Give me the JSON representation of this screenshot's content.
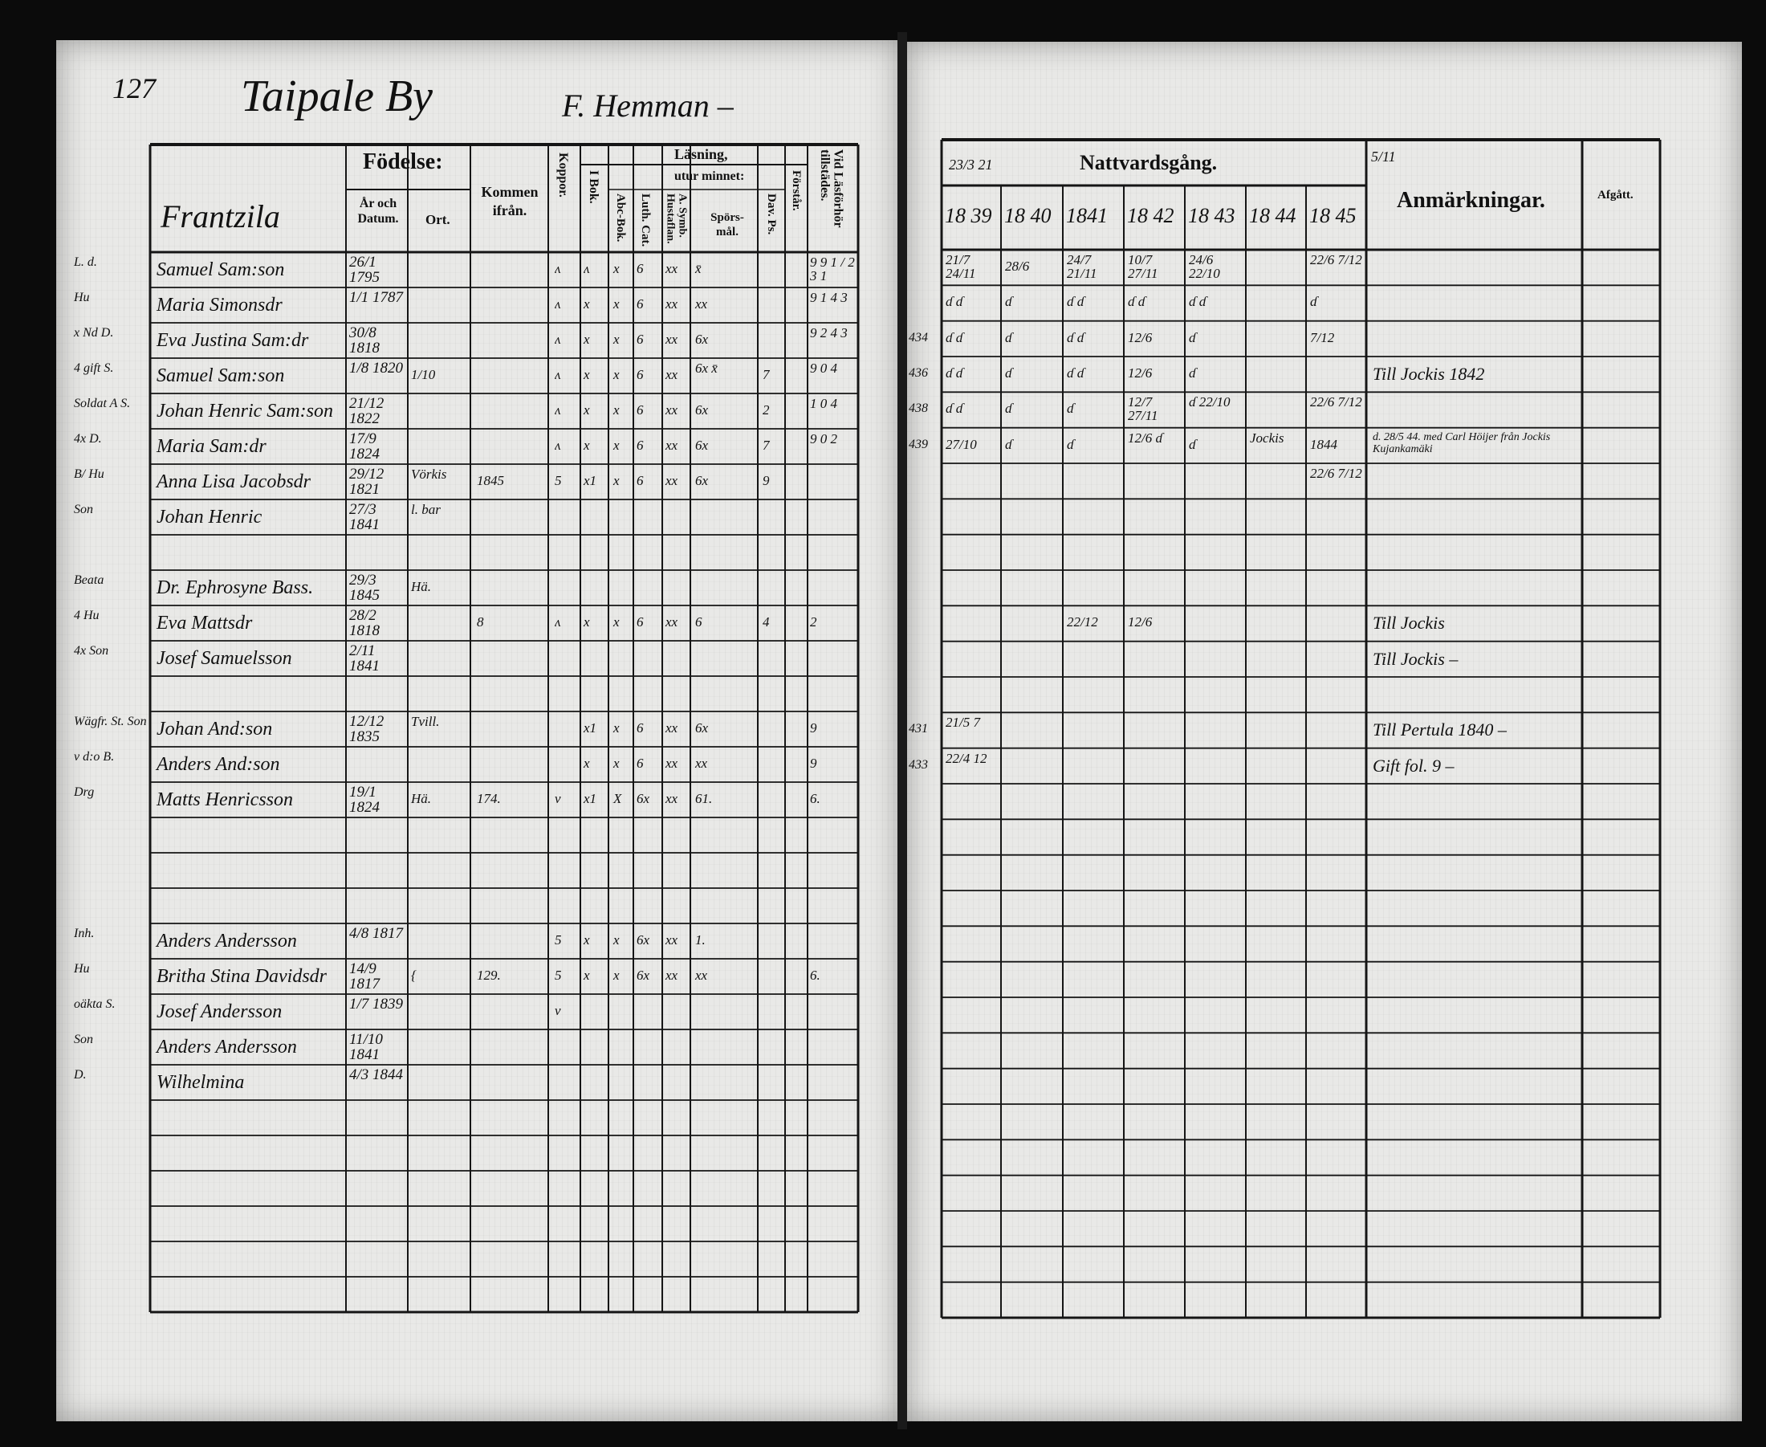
{
  "header": {
    "page_number": "127",
    "village": "Taipale By",
    "farm": "F. Hemman –"
  },
  "left_table": {
    "headers": {
      "name": "Frantzila",
      "birth": "Födelse:",
      "year_date": "År och Datum.",
      "place": "Ort.",
      "came_from": "Kommen ifrån.",
      "smallpox": "Koppor.",
      "reading": "Läsning,",
      "by_heart": "utur minnet:",
      "in_book": "I Bok.",
      "abc_book": "Abc-Bok.",
      "luth_cat": "Luth. Cat.",
      "symb": "A. Symb. Hustaflan.",
      "questions": "Spörs-mål.",
      "dav_ps": "Dav. Ps.",
      "understanding": "Förstår.",
      "exam_present": "Vid Läsförhör tillstädes."
    },
    "rows": [
      {
        "margin": "L. d.",
        "name": "Samuel Sam:son",
        "date": "26/1 1795",
        "ort": "",
        "came": "",
        "koppor": "ʌ",
        "ibok": "ʌ",
        "abc": "x",
        "luth": "6",
        "symb": "xx",
        "spors": "x̄",
        "dav": "",
        "forstar": "",
        "vid": "9 9 1 / 2 3 1"
      },
      {
        "margin": "Hu",
        "name": "Maria Simonsdr",
        "date": "1/1 1787",
        "ort": "",
        "came": "",
        "koppor": "ʌ",
        "ibok": "x",
        "abc": "x",
        "luth": "6",
        "symb": "xx",
        "spors": "xx",
        "dav": "",
        "forstar": "",
        "vid": "9 1 4 3"
      },
      {
        "margin": "x Nd D.",
        "name": "Eva Justina Sam:dr",
        "date": "30/8 1818",
        "ort": "",
        "came": "",
        "koppor": "ʌ",
        "ibok": "x",
        "abc": "x",
        "luth": "6",
        "symb": "xx",
        "spors": "6x",
        "dav": "",
        "forstar": "",
        "vid": "9 2 4 3"
      },
      {
        "margin": "4 gift S.",
        "name": "Samuel Sam:son",
        "date": "1/8 1820",
        "ort": "1/10",
        "came": "",
        "koppor": "ʌ",
        "ibok": "x",
        "abc": "x",
        "luth": "6",
        "symb": "xx",
        "spors": "6x x̄",
        "dav": "7",
        "forstar": "",
        "vid": "9 0 4"
      },
      {
        "margin": "Soldat A S.",
        "name": "Johan Henric Sam:son",
        "date": "21/12 1822",
        "ort": "",
        "came": "",
        "koppor": "ʌ",
        "ibok": "x",
        "abc": "x",
        "luth": "6",
        "symb": "xx",
        "spors": "6x",
        "dav": "2",
        "forstar": "",
        "vid": "1 0 4"
      },
      {
        "margin": "4x D.",
        "name": "Maria Sam:dr",
        "date": "17/9 1824",
        "ort": "",
        "came": "",
        "koppor": "ʌ",
        "ibok": "x",
        "abc": "x",
        "luth": "6",
        "symb": "xx",
        "spors": "6x",
        "dav": "7",
        "forstar": "",
        "vid": "9 0 2"
      },
      {
        "margin": "B/ Hu",
        "name": "Anna Lisa Jacobsdr",
        "date": "29/12 1821",
        "ort": "Vörkis",
        "came": "1845",
        "koppor": "5",
        "ibok": "x1",
        "abc": "x",
        "luth": "6",
        "symb": "xx",
        "spors": "6x",
        "dav": "9",
        "forstar": "",
        "vid": ""
      },
      {
        "margin": "Son",
        "name": "Johan Henric",
        "date": "27/3 1841",
        "ort": "l. bar",
        "came": "",
        "koppor": "",
        "ibok": "",
        "abc": "",
        "luth": "",
        "symb": "",
        "spors": "",
        "dav": "",
        "forstar": "",
        "vid": ""
      },
      {},
      {
        "margin": "Beata",
        "name": "Dr. Ephrosyne Bass.",
        "date": "29/3 1845",
        "ort": "Hä.",
        "came": "",
        "koppor": "",
        "ibok": "",
        "abc": "",
        "luth": "",
        "symb": "",
        "spors": "",
        "dav": "",
        "forstar": "",
        "vid": ""
      },
      {
        "margin": "4 Hu",
        "name": "Eva Mattsdr",
        "date": "28/2 1818",
        "ort": "",
        "came": "8",
        "koppor": "ʌ",
        "ibok": "x",
        "abc": "x",
        "luth": "6",
        "symb": "xx",
        "spors": "6",
        "dav": "4",
        "forstar": "",
        "vid": "2"
      },
      {
        "margin": "4x Son",
        "name": "Josef Samuelsson",
        "date": "2/11 1841",
        "ort": "",
        "came": "",
        "koppor": "",
        "ibok": "",
        "abc": "",
        "luth": "",
        "symb": "",
        "spors": "",
        "dav": "",
        "forstar": "",
        "vid": ""
      },
      {},
      {
        "margin": "Wägfr. St. Son",
        "name": "Johan And:son",
        "date": "12/12 1835",
        "ort": "Tvill.",
        "came": "",
        "koppor": "",
        "ibok": "x1",
        "abc": "x",
        "luth": "6",
        "symb": "xx",
        "spors": "6x",
        "dav": "",
        "forstar": "",
        "vid": "9"
      },
      {
        "margin": "v d:o B.",
        "name": "Anders And:son",
        "date": "",
        "ort": "",
        "came": "",
        "koppor": "",
        "ibok": "x",
        "abc": "x",
        "luth": "6",
        "symb": "xx",
        "spors": "xx",
        "dav": "",
        "forstar": "",
        "vid": "9"
      },
      {
        "margin": "Drg",
        "name": "Matts Henricsson",
        "date": "19/1 1824",
        "ort": "Hä.",
        "came": "174.",
        "koppor": "v",
        "ibok": "x1",
        "abc": "X",
        "luth": "6x",
        "symb": "xx",
        "spors": "61.",
        "dav": "",
        "forstar": "",
        "vid": "6."
      },
      {},
      {},
      {},
      {
        "margin": "Inh.",
        "name": "Anders Andersson",
        "date": "4/8 1817",
        "ort": "",
        "came": "",
        "koppor": "5",
        "ibok": "x",
        "abc": "x",
        "luth": "6x",
        "symb": "xx",
        "spors": "1.",
        "dav": "",
        "forstar": "",
        "vid": ""
      },
      {
        "margin": "Hu",
        "name": "Britha Stina Davidsdr",
        "date": "14/9 1817",
        "ort": "{",
        "came": "129.",
        "koppor": "5",
        "ibok": "x",
        "abc": "x",
        "luth": "6x",
        "symb": "xx",
        "spors": "xx",
        "dav": "",
        "forstar": "",
        "vid": "6."
      },
      {
        "margin": "oäkta S.",
        "name": "Josef Andersson",
        "date": "1/7 1839",
        "ort": "",
        "came": "",
        "koppor": "v",
        "ibok": "",
        "abc": "",
        "luth": "",
        "symb": "",
        "spors": "",
        "dav": "",
        "forstar": "",
        "vid": ""
      },
      {
        "margin": "Son",
        "name": "Anders Andersson",
        "date": "11/10 1841",
        "ort": "",
        "came": "",
        "koppor": "",
        "ibok": "",
        "abc": "",
        "luth": "",
        "symb": "",
        "spors": "",
        "dav": "",
        "forstar": "",
        "vid": ""
      },
      {
        "margin": "D.",
        "name": "Wilhelmina",
        "date": "4/3 1844",
        "ort": "",
        "came": "",
        "koppor": "",
        "ibok": "",
        "abc": "",
        "luth": "",
        "symb": "",
        "spors": "",
        "dav": "",
        "forstar": "",
        "vid": ""
      }
    ]
  },
  "right_table": {
    "headers": {
      "communion": "Nattvardsgång.",
      "years": [
        "18 39",
        "18 40",
        "1841",
        "18 42",
        "18 43",
        "18 44",
        "18 45"
      ],
      "remarks": "Anmärkningar.",
      "departed": "Afgått."
    },
    "header_notes": {
      "communion_note": "23/3 21",
      "remarks_note": "5/11"
    },
    "rows": [
      {
        "margin": "",
        "y": [
          "21/7 24/11",
          "28/6",
          "24/7 21/11",
          "10/7 27/11",
          "24/6 22/10",
          "",
          "22/6 7/12"
        ],
        "remark": ""
      },
      {
        "margin": "",
        "y": [
          "ɗ ɗ",
          "ɗ",
          "ɗ ɗ",
          "ɗ ɗ",
          "ɗ ɗ",
          "",
          "ɗ"
        ],
        "remark": ""
      },
      {
        "margin": "434",
        "y": [
          "ɗ ɗ",
          "ɗ",
          "ɗ ɗ",
          "12/6",
          "ɗ",
          "",
          "7/12"
        ],
        "remark": ""
      },
      {
        "margin": "436",
        "y": [
          "ɗ ɗ",
          "ɗ",
          "ɗ ɗ",
          "12/6",
          "ɗ",
          "",
          ""
        ],
        "remark": "Till Jockis 1842"
      },
      {
        "margin": "438",
        "y": [
          "ɗ ɗ",
          "ɗ",
          "ɗ",
          "12/7 27/11",
          "ɗ 22/10",
          "",
          "22/6 7/12"
        ],
        "remark": ""
      },
      {
        "margin": "439",
        "y": [
          "27/10",
          "ɗ",
          "ɗ",
          "12/6 ɗ",
          "ɗ",
          "Jockis",
          "1844"
        ],
        "remark": "d. 28/5 44. med Carl Höijer från Jockis Kujankamäki"
      },
      {
        "margin": "",
        "y": [
          "",
          "",
          "",
          "",
          "",
          "",
          "22/6 7/12"
        ],
        "remark": ""
      },
      {},
      {},
      {},
      {
        "margin": "",
        "y": [
          "",
          "",
          "22/12",
          "12/6",
          "",
          "",
          ""
        ],
        "remark": "Till Jockis"
      },
      {
        "margin": "",
        "y": [
          "",
          "",
          "",
          "",
          "",
          "",
          ""
        ],
        "remark": "Till Jockis –"
      },
      {},
      {
        "margin": "431",
        "y": [
          "21/5 7",
          "",
          "",
          "",
          "",
          "",
          ""
        ],
        "remark": "Till Pertula 1840 –"
      },
      {
        "margin": "433",
        "y": [
          "22/4 12",
          "",
          "",
          "",
          "",
          "",
          ""
        ],
        "remark": "Gift fol. 9 –"
      }
    ]
  }
}
